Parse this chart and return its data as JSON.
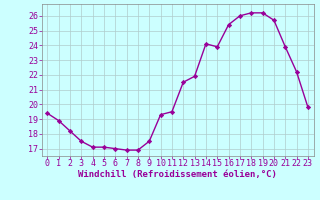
{
  "x": [
    0,
    1,
    2,
    3,
    4,
    5,
    6,
    7,
    8,
    9,
    10,
    11,
    12,
    13,
    14,
    15,
    16,
    17,
    18,
    19,
    20,
    21,
    22,
    23
  ],
  "y": [
    19.4,
    18.9,
    18.2,
    17.5,
    17.1,
    17.1,
    17.0,
    16.9,
    16.9,
    17.5,
    19.3,
    19.5,
    21.5,
    21.9,
    24.1,
    23.9,
    25.4,
    26.0,
    26.2,
    26.2,
    25.7,
    23.9,
    22.2,
    19.8
  ],
  "line_color": "#990099",
  "marker": "D",
  "markersize": 2.2,
  "linewidth": 1.0,
  "background_color": "#ccffff",
  "grid_color": "#b0cccc",
  "ylabel_ticks": [
    17,
    18,
    19,
    20,
    21,
    22,
    23,
    24,
    25,
    26
  ],
  "xlabel": "Windchill (Refroidissement éolien,°C)",
  "xlabel_color": "#990099",
  "xlabel_fontsize": 6.5,
  "tick_color": "#990099",
  "tick_fontsize": 6.0,
  "ylim": [
    16.5,
    26.8
  ],
  "xlim": [
    -0.5,
    23.5
  ],
  "spine_color": "#888888"
}
